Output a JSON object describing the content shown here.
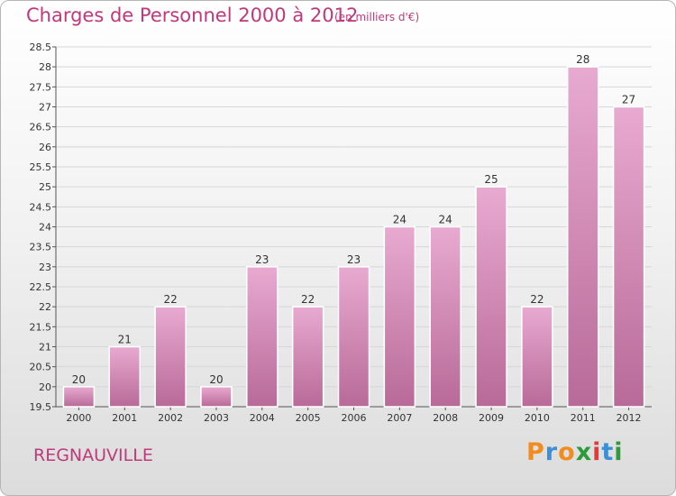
{
  "title": "Charges de Personnel 2000 à 2012",
  "subtitle": "(en milliers d'€)",
  "place": "REGNAUVILLE",
  "logo": {
    "letters": [
      "P",
      "r",
      "o",
      "x",
      "i",
      "t",
      "i"
    ],
    "colors": [
      "#f28c1e",
      "#3a8fd9",
      "#f28c1e",
      "#2f9a3b",
      "#e53935",
      "#3a8fd9",
      "#2f9a3b"
    ]
  },
  "colors": {
    "bar": "#cc7aaa",
    "bar_light": "#e6a8cd",
    "text": "#c0397a"
  },
  "chart_data": {
    "type": "bar",
    "categories": [
      "2000",
      "2001",
      "2002",
      "2003",
      "2004",
      "2005",
      "2006",
      "2007",
      "2008",
      "2009",
      "2010",
      "2011",
      "2012"
    ],
    "values": [
      20,
      21,
      22,
      20,
      23,
      22,
      23,
      24,
      24,
      25,
      22,
      28,
      27
    ],
    "value_labels": [
      "20",
      "21",
      "22",
      "20",
      "23",
      "22",
      "23",
      "24",
      "24",
      "25",
      "22",
      "28",
      "27"
    ],
    "ylim": [
      19.5,
      28.5
    ],
    "yticks": [
      "19.5",
      "20",
      "20.5",
      "21",
      "21.5",
      "22",
      "22.5",
      "23",
      "23.5",
      "24",
      "24.5",
      "25",
      "25.5",
      "26",
      "26.5",
      "27",
      "27.5",
      "28",
      "28.5"
    ],
    "grid": true,
    "title": "Charges de Personnel 2000 à 2012",
    "xlabel": "",
    "ylabel": ""
  }
}
